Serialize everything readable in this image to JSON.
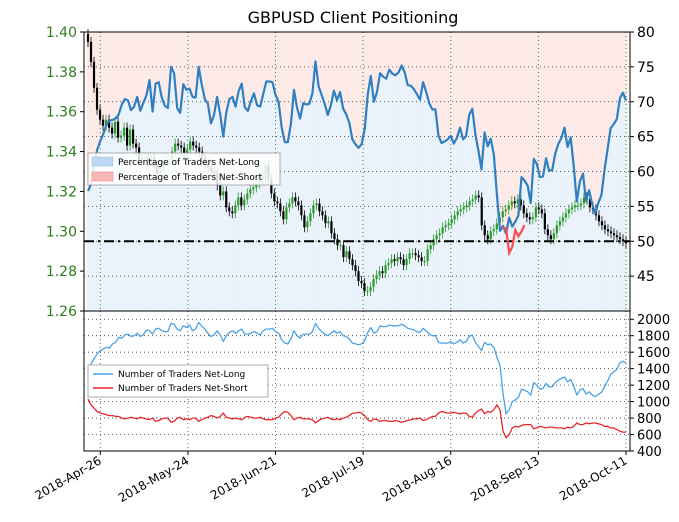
{
  "chart_data": {
    "type": "line",
    "title": "GBPUSD Client Positioning",
    "x_tick_labels": [
      "2018-Apr-26",
      "2018-May-24",
      "2018-Jun-21",
      "2018-Jul-19",
      "2018-Aug-16",
      "2018-Sep-13",
      "2018-Oct-11"
    ],
    "top_panel": {
      "left_axis": {
        "ylim": [
          1.26,
          1.4
        ],
        "ticks": [
          "1.26",
          "1.28",
          "1.30",
          "1.32",
          "1.34",
          "1.36",
          "1.38",
          "1.40"
        ],
        "color": "#2e7d1e"
      },
      "right_axis": {
        "ylim": [
          40,
          80
        ],
        "ticks": [
          "45",
          "50",
          "55",
          "60",
          "65",
          "70",
          "75",
          "80"
        ]
      },
      "reference_line": 50,
      "legend": {
        "position": "upper-left",
        "entries": [
          "Percentage of Traders Net-Long",
          "Percentage of Traders Net-Short"
        ]
      },
      "series": [
        {
          "name": "Percentage of Traders Net-Long",
          "color": "#2f7fc1",
          "values": [
            57.2,
            58.2,
            60.9,
            63.1,
            64.4,
            65.4,
            66.7,
            67.3,
            67.4,
            67.6,
            68.2,
            69.6,
            70.4,
            70.2,
            68.8,
            69.3,
            70.7,
            68.7,
            69.8,
            70.9,
            73.1,
            68.6,
            72.6,
            72.8,
            70.6,
            69.4,
            69.1,
            75.0,
            74.1,
            69.1,
            68.4,
            72.5,
            71.7,
            71.9,
            70.7,
            70.6,
            75.0,
            72.5,
            70.4,
            69.7,
            66.9,
            68.1,
            70.7,
            68.2,
            65.0,
            68.5,
            70.4,
            70.7,
            69.3,
            71.5,
            72.6,
            69.2,
            68.7,
            70.1,
            71.2,
            69.5,
            69.3,
            71.1,
            72.9,
            72.9,
            72.8,
            71.0,
            70.0,
            66.3,
            64.2,
            64.2,
            66.8,
            71.7,
            69.1,
            67.6,
            69.8,
            69.6,
            69.7,
            71.2,
            75.8,
            72.2,
            71.0,
            69.7,
            68.1,
            69.5,
            71.6,
            70.2,
            71.4,
            69.0,
            68.2,
            67.0,
            64.6,
            63.9,
            63.4,
            63.9,
            66.1,
            71.1,
            73.7,
            70.0,
            71.4,
            74.1,
            73.6,
            73.3,
            74.6,
            74.0,
            73.8,
            74.2,
            75.2,
            74.2,
            72.4,
            72.3,
            71.8,
            71.1,
            70.3,
            72.8,
            71.4,
            69.8,
            68.9,
            68.9,
            65.1,
            64.1,
            64.3,
            64.6,
            65.1,
            64.0,
            64.8,
            66.3,
            64.6,
            65.1,
            68.1,
            69.0,
            65.3,
            63.0,
            60.3,
            65.6,
            63.6,
            64.7,
            62.5,
            56.7,
            51.5,
            52.2,
            51.1,
            53.4,
            52.1,
            52.8,
            53.7,
            59.2,
            58.7,
            58.0,
            55.5,
            61.8,
            61.1,
            59.2,
            59.3,
            61.9,
            60.1,
            60.2,
            62.6,
            64.0,
            64.8,
            66.3,
            63.5,
            64.9,
            60.8,
            55.7,
            58.6,
            59.7,
            55.8,
            57.3,
            55.3,
            54.0,
            55.5,
            56.6,
            60.2,
            63.2,
            66.2,
            66.8,
            67.5,
            70.5,
            71.3,
            70.2
          ]
        },
        {
          "name": "Percentage of Traders Net-Short",
          "color": "#ff4c4c",
          "note_values": "shown where net-long < 50",
          "values": [
            52.0,
            51.8,
            48.3,
            49.2,
            51.6,
            50.7,
            51.4,
            52.3
          ]
        }
      ],
      "price": {
        "name": "GBPUSD",
        "color_up": "#2a9a2a",
        "color_down": "#000000",
        "close": [
          1.395,
          1.385,
          1.372,
          1.361,
          1.356,
          1.353,
          1.356,
          1.352,
          1.349,
          1.355,
          1.347,
          1.348,
          1.352,
          1.343,
          1.351,
          1.344,
          1.342,
          1.336,
          1.337,
          1.337,
          1.335,
          1.337,
          1.333,
          1.329,
          1.333,
          1.335,
          1.336,
          1.336,
          1.34,
          1.344,
          1.343,
          1.342,
          1.339,
          1.341,
          1.345,
          1.343,
          1.342,
          1.34,
          1.337,
          1.334,
          1.332,
          1.33,
          1.329,
          1.323,
          1.318,
          1.32,
          1.312,
          1.31,
          1.309,
          1.313,
          1.317,
          1.313,
          1.316,
          1.319,
          1.321,
          1.322,
          1.324,
          1.327,
          1.326,
          1.333,
          1.326,
          1.319,
          1.315,
          1.314,
          1.31,
          1.306,
          1.312,
          1.314,
          1.317,
          1.315,
          1.313,
          1.308,
          1.302,
          1.305,
          1.309,
          1.313,
          1.314,
          1.31,
          1.308,
          1.304,
          1.305,
          1.299,
          1.296,
          1.293,
          1.293,
          1.287,
          1.29,
          1.286,
          1.283,
          1.28,
          1.275,
          1.274,
          1.27,
          1.27,
          1.272,
          1.276,
          1.278,
          1.28,
          1.279,
          1.283,
          1.284,
          1.286,
          1.285,
          1.287,
          1.286,
          1.283,
          1.286,
          1.289,
          1.289,
          1.288,
          1.287,
          1.285,
          1.285,
          1.291,
          1.293,
          1.296,
          1.298,
          1.299,
          1.302,
          1.303,
          1.304,
          1.306,
          1.308,
          1.31,
          1.311,
          1.312,
          1.313,
          1.315,
          1.316,
          1.318,
          1.317,
          1.303,
          1.298,
          1.296,
          1.3,
          1.301,
          1.304,
          1.307,
          1.31,
          1.311,
          1.313,
          1.315,
          1.314,
          1.316,
          1.313,
          1.309,
          1.307,
          1.306,
          1.307,
          1.312,
          1.311,
          1.309,
          1.301,
          1.298,
          1.296,
          1.299,
          1.303,
          1.305,
          1.307,
          1.309,
          1.311,
          1.312,
          1.313,
          1.313,
          1.314,
          1.317,
          1.316,
          1.312,
          1.311,
          1.308,
          1.305,
          1.303,
          1.301,
          1.3,
          1.299,
          1.298,
          1.297,
          1.296,
          1.295,
          1.294
        ]
      }
    },
    "bottom_panel": {
      "right_axis": {
        "ylim": [
          400,
          2100
        ],
        "ticks": [
          "400",
          "600",
          "800",
          "1000",
          "1200",
          "1400",
          "1600",
          "1800",
          "2000"
        ]
      },
      "legend": {
        "position": "left",
        "entries": [
          "Number of Traders Net-Long",
          "Number of Traders Net-Short"
        ]
      },
      "series": [
        {
          "name": "Number of Traders Net-Long",
          "color": "#4aa3e8",
          "values": [
            1400,
            1460,
            1520,
            1580,
            1620,
            1640,
            1660,
            1650,
            1700,
            1720,
            1780,
            1770,
            1810,
            1820,
            1790,
            1800,
            1830,
            1790,
            1810,
            1870,
            1860,
            1820,
            1880,
            1890,
            1860,
            1850,
            1850,
            1950,
            1940,
            1880,
            1860,
            1920,
            1900,
            1930,
            1860,
            1880,
            1960,
            1920,
            1880,
            1830,
            1790,
            1810,
            1860,
            1810,
            1730,
            1800,
            1840,
            1860,
            1830,
            1860,
            1880,
            1820,
            1820,
            1830,
            1850,
            1830,
            1810,
            1860,
            1880,
            1880,
            1890,
            1850,
            1830,
            1750,
            1710,
            1700,
            1760,
            1860,
            1800,
            1770,
            1820,
            1820,
            1820,
            1850,
            1950,
            1890,
            1850,
            1820,
            1800,
            1830,
            1860,
            1830,
            1850,
            1800,
            1790,
            1760,
            1710,
            1700,
            1690,
            1700,
            1740,
            1840,
            1900,
            1830,
            1850,
            1920,
            1910,
            1910,
            1930,
            1920,
            1920,
            1920,
            1940,
            1920,
            1890,
            1880,
            1870,
            1850,
            1840,
            1890,
            1860,
            1820,
            1800,
            1800,
            1720,
            1710,
            1710,
            1710,
            1730,
            1700,
            1720,
            1750,
            1710,
            1730,
            1790,
            1810,
            1720,
            1670,
            1620,
            1720,
            1690,
            1700,
            1660,
            1540,
            1440,
            1100,
            850,
            900,
            1000,
            1020,
            1050,
            1150,
            1140,
            1120,
            1080,
            1230,
            1200,
            1150,
            1160,
            1220,
            1180,
            1180,
            1230,
            1260,
            1280,
            1300,
            1240,
            1270,
            1190,
            1080,
            1140,
            1160,
            1090,
            1120,
            1080,
            1060,
            1090,
            1110,
            1180,
            1250,
            1330,
            1360,
            1390,
            1470,
            1490,
            1470
          ]
        },
        {
          "name": "Number of Traders Net-Short",
          "color": "#e8262a",
          "values": [
            1030,
            960,
            920,
            880,
            860,
            850,
            840,
            830,
            830,
            820,
            820,
            800,
            790,
            800,
            810,
            800,
            790,
            810,
            800,
            790,
            780,
            800,
            760,
            770,
            790,
            800,
            800,
            750,
            760,
            800,
            810,
            780,
            790,
            780,
            800,
            800,
            760,
            780,
            800,
            810,
            830,
            820,
            800,
            820,
            860,
            810,
            800,
            790,
            800,
            790,
            780,
            810,
            820,
            810,
            800,
            800,
            810,
            790,
            780,
            780,
            780,
            800,
            810,
            850,
            880,
            870,
            830,
            780,
            800,
            810,
            790,
            790,
            790,
            780,
            740,
            770,
            790,
            800,
            810,
            790,
            780,
            790,
            780,
            800,
            810,
            830,
            860,
            860,
            870,
            860,
            830,
            780,
            760,
            790,
            780,
            760,
            770,
            770,
            760,
            760,
            770,
            760,
            750,
            760,
            770,
            780,
            790,
            790,
            800,
            770,
            780,
            800,
            820,
            820,
            860,
            880,
            870,
            860,
            860,
            870,
            860,
            850,
            860,
            860,
            820,
            810,
            860,
            890,
            910,
            850,
            880,
            870,
            900,
            960,
            900,
            640,
            560,
            600,
            680,
            700,
            690,
            710,
            720,
            720,
            720,
            670,
            680,
            700,
            690,
            680,
            690,
            690,
            680,
            680,
            680,
            670,
            690,
            680,
            700,
            740,
            720,
            720,
            740,
            730,
            740,
            740,
            730,
            720,
            700,
            700,
            680,
            680,
            660,
            640,
            630,
            630
          ]
        }
      ]
    }
  }
}
